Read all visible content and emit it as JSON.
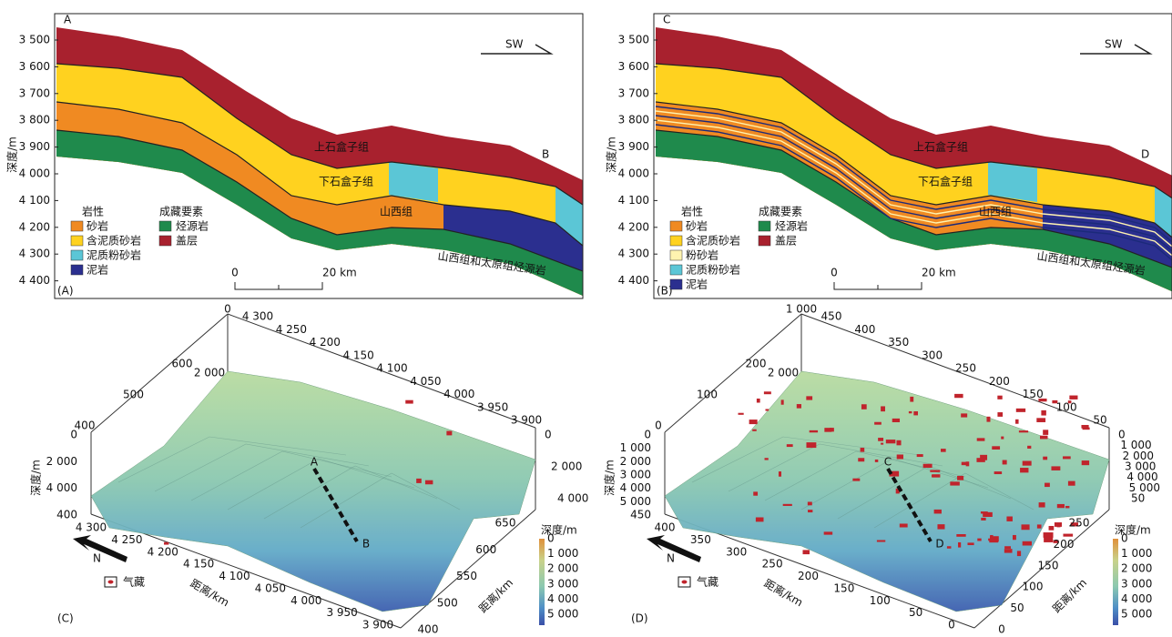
{
  "panel_a": {
    "label": "(A)",
    "start": "A",
    "end": "B",
    "y_title": "深度/m",
    "yticks": [
      "3 500",
      "3 600",
      "3 700",
      "3 800",
      "3 900",
      "4 000",
      "4 100",
      "4 200",
      "4 300",
      "4 400"
    ],
    "direction": "SW",
    "formations": [
      "上石盒子组",
      "下石盒子组",
      "山西组",
      "山西组和太原组烃源岩"
    ],
    "lith_title": "岩性",
    "lithology": [
      "砂岩",
      "含泥质砂岩",
      "泥质粉砂岩",
      "泥岩"
    ],
    "elem_title": "成藏要素",
    "elements": [
      "烃源岩",
      "盖层"
    ],
    "scale": [
      "0",
      "20 km"
    ]
  },
  "panel_b": {
    "label": "(B)",
    "start": "C",
    "end": "D",
    "y_title": "深度/m",
    "yticks": [
      "3 500",
      "3 600",
      "3 700",
      "3 800",
      "3 900",
      "4 000",
      "4 100",
      "4 200",
      "4 300",
      "4 400"
    ],
    "direction": "SW",
    "formations": [
      "上石盒子组",
      "下石盒子组",
      "山西组",
      "山西组和太原组烃源岩"
    ],
    "lith_title": "岩性",
    "lithology": [
      "砂岩",
      "含泥质砂岩",
      "粉砂岩",
      "泥质粉砂岩",
      "泥岩"
    ],
    "elem_title": "成藏要素",
    "elements": [
      "烃源岩",
      "盖层"
    ],
    "scale": [
      "0",
      "20 km"
    ]
  },
  "panel_c": {
    "label": "(C)",
    "start": "A",
    "end": "B",
    "z_title": "深度/m",
    "x_title": "距离/km",
    "y_title": "距离/km",
    "legend": "气藏",
    "north": "N",
    "top_axis": [
      "4 300",
      "4 250",
      "4 200",
      "4 150",
      "4 100",
      "4 050",
      "4 000",
      "3 950",
      "3 900"
    ],
    "back_axis": [
      "600",
      "500",
      "400"
    ],
    "back_z": [
      "0",
      "2 000"
    ],
    "left_z": [
      "0",
      "2 000",
      "4 000",
      "400"
    ],
    "right_z": [
      "0",
      "2 000",
      "4 000"
    ],
    "front_axis": [
      "4 300",
      "4 250",
      "4 200",
      "4 150",
      "4 100",
      "4 050",
      "4 000",
      "3 950",
      "3 900"
    ],
    "side_axis": [
      "650",
      "600",
      "550",
      "500",
      "400"
    ],
    "colorbar_title": "深度/m",
    "colorbar": [
      "0",
      "1 000",
      "2 000",
      "3 000",
      "4 000",
      "5 000"
    ]
  },
  "panel_d": {
    "label": "(D)",
    "start": "C",
    "end": "D",
    "z_title": "深度/m",
    "x_title": "距离/km",
    "y_title": "距离/km",
    "legend": "气藏",
    "north": "N",
    "top_axis": [
      "450",
      "400",
      "350",
      "300",
      "250",
      "200",
      "150",
      "100",
      "50"
    ],
    "back_axis": [
      "200",
      "100",
      "0"
    ],
    "back_z": [
      "1 000",
      "2 000"
    ],
    "left_z": [
      "0",
      "1 000",
      "2 000",
      "3 000",
      "4 000",
      "5 000",
      "450"
    ],
    "right_z": [
      "0",
      "1 000",
      "2 000",
      "3 000",
      "4 000",
      "5 000",
      "50"
    ],
    "front_axis": [
      "400",
      "350",
      "300",
      "250",
      "200",
      "150",
      "100",
      "50",
      "0"
    ],
    "side_axis": [
      "250",
      "200",
      "150",
      "100",
      "50",
      "0"
    ],
    "colorbar_title": "深度/m",
    "colorbar": [
      "0",
      "1 000",
      "2 000",
      "3 000",
      "4 000",
      "5 000"
    ]
  }
}
